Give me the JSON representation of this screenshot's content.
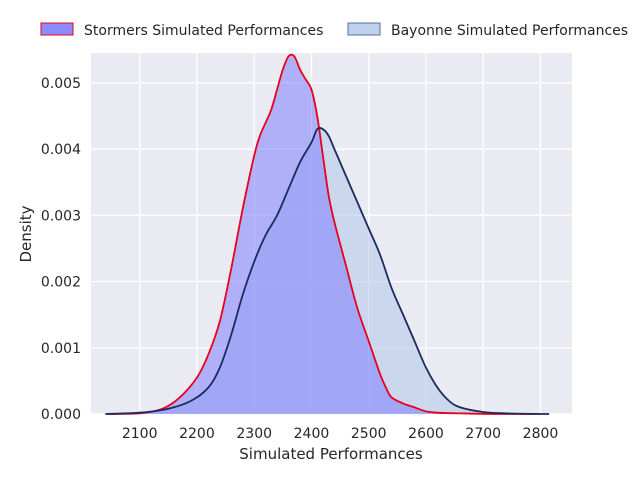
{
  "chart_data": {
    "type": "area",
    "xlabel": "Simulated Performances",
    "ylabel": "Density",
    "xlim": [
      2015,
      2855
    ],
    "ylim": [
      0,
      0.00545
    ],
    "xticks": [
      2100,
      2200,
      2300,
      2400,
      2500,
      2600,
      2700,
      2800
    ],
    "xtick_labels": [
      "2100",
      "2200",
      "2300",
      "2400",
      "2500",
      "2600",
      "2700",
      "2800"
    ],
    "yticks": [
      0,
      0.001,
      0.002,
      0.003,
      0.004,
      0.005
    ],
    "ytick_labels": [
      "0.000",
      "0.001",
      "0.002",
      "0.003",
      "0.004",
      "0.005"
    ],
    "grid": true,
    "legend_position": "top",
    "series": [
      {
        "name": "Stormers Simulated Performances",
        "fill_color": "#8080ff",
        "line_color": "#e8001a",
        "x": [
          2045,
          2100,
          2140,
          2170,
          2200,
          2220,
          2240,
          2260,
          2280,
          2300,
          2310,
          2320,
          2330,
          2340,
          2350,
          2360,
          2370,
          2380,
          2390,
          2400,
          2410,
          2420,
          2430,
          2440,
          2460,
          2480,
          2500,
          2520,
          2530,
          2540,
          2560,
          2580,
          2600,
          2620,
          2660,
          2720,
          2790
        ],
        "y": [
          0,
          1e-05,
          8e-05,
          0.00025,
          0.00055,
          0.0009,
          0.0014,
          0.0022,
          0.0031,
          0.0039,
          0.0042,
          0.0044,
          0.0046,
          0.0049,
          0.0052,
          0.0054,
          0.0054,
          0.0052,
          0.00505,
          0.0049,
          0.0045,
          0.0039,
          0.0033,
          0.0029,
          0.00225,
          0.0016,
          0.0011,
          0.0006,
          0.0004,
          0.00025,
          0.00016,
          0.0001,
          4e-05,
          2e-05,
          1e-05,
          0,
          0
        ]
      },
      {
        "name": "Bayonne Simulated Performances",
        "fill_color": "#aec7e8",
        "line_color": "#1a2b5c",
        "x": [
          2040,
          2100,
          2150,
          2190,
          2220,
          2240,
          2260,
          2280,
          2300,
          2320,
          2340,
          2360,
          2380,
          2400,
          2410,
          2420,
          2430,
          2440,
          2450,
          2460,
          2480,
          2500,
          2520,
          2540,
          2560,
          2580,
          2600,
          2620,
          2640,
          2660,
          2700,
          2740,
          2800,
          2815
        ],
        "y": [
          0,
          2e-05,
          8e-05,
          0.0002,
          0.0004,
          0.0007,
          0.0012,
          0.0018,
          0.0023,
          0.0027,
          0.003,
          0.0034,
          0.0038,
          0.0041,
          0.0043,
          0.0043,
          0.0042,
          0.004,
          0.0038,
          0.0036,
          0.0032,
          0.0028,
          0.0024,
          0.0019,
          0.0015,
          0.0011,
          0.0007,
          0.0004,
          0.0002,
          0.0001,
          3e-05,
          1e-05,
          0,
          0
        ]
      }
    ]
  }
}
